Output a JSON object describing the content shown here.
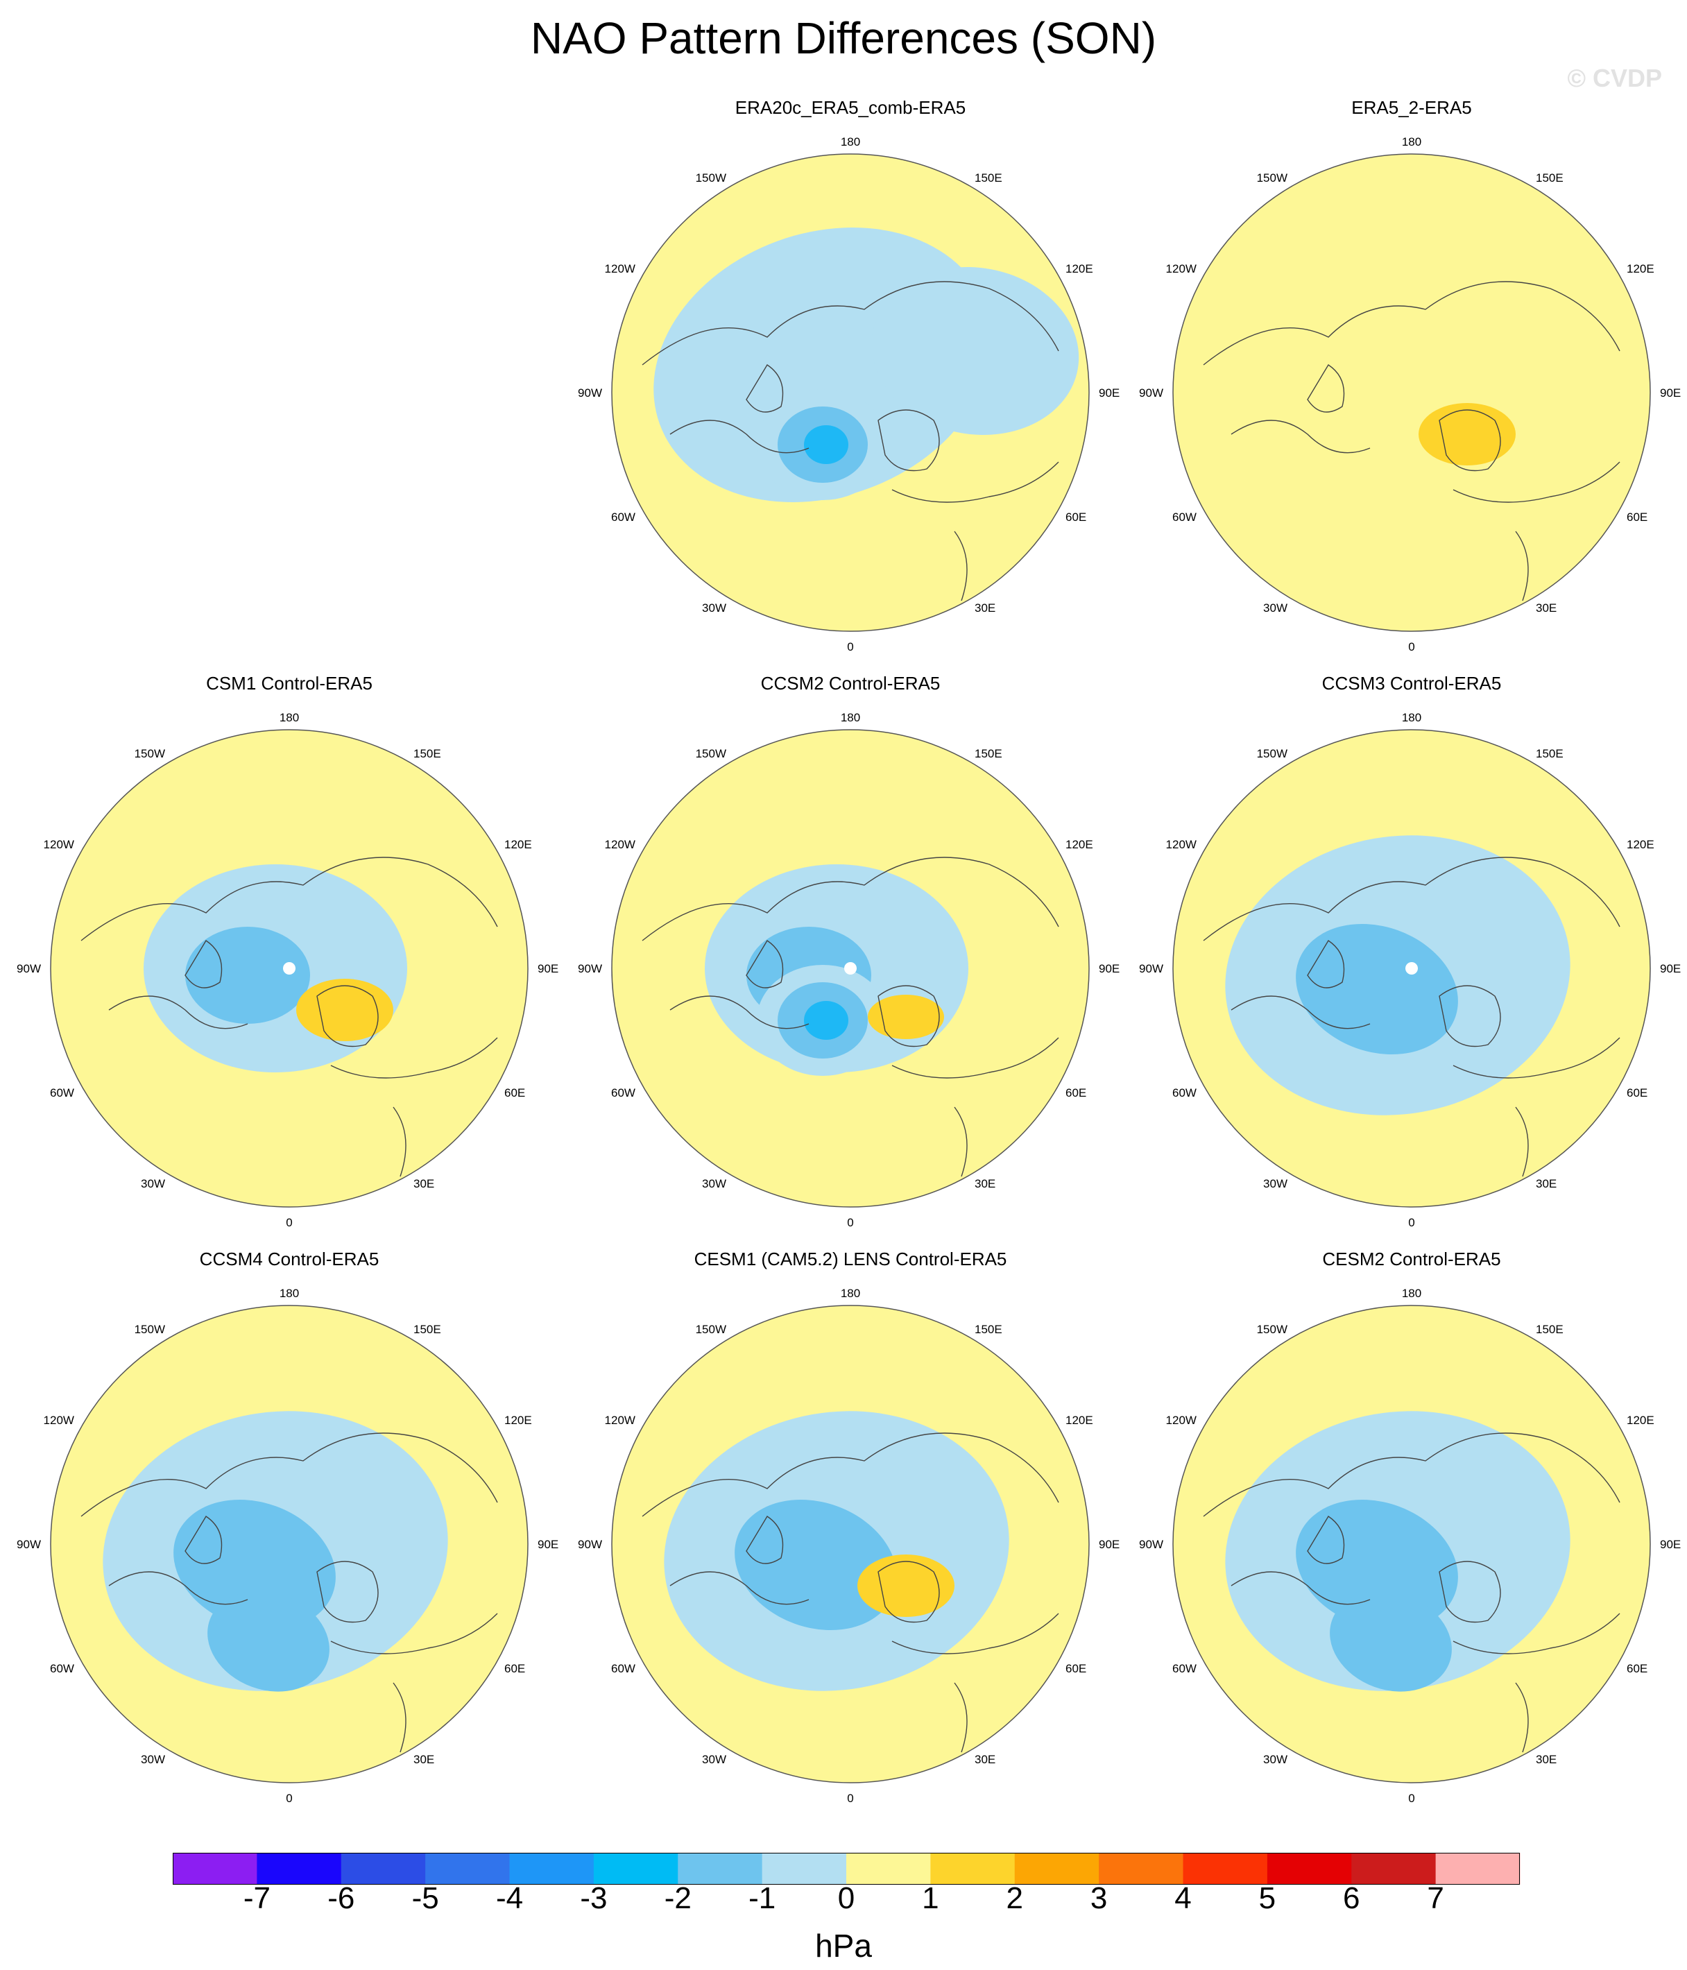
{
  "title": "NAO Pattern Differences (SON)",
  "watermark": "© CVDP",
  "colors": {
    "neg1": "#b3dff2",
    "neg2": "#6ec4ee",
    "neg3": "#1eb8f5",
    "pos1": "#fdf796",
    "pos2": "#fdd42c",
    "land_outline": "#444444"
  },
  "longitude_labels": {
    "top": "180",
    "top_left": "150W",
    "top_right": "150E",
    "upper_left": "120W",
    "upper_right": "120E",
    "left": "90W",
    "right": "90E",
    "lower_left": "60W",
    "lower_right": "60E",
    "bottom_left": "30W",
    "bottom_right": "30E",
    "bottom": "0"
  },
  "panels": [
    {
      "title": "ERA20c_ERA5_comb-ERA5",
      "features": [
        "nh-low-wide",
        "atlantic-low-strong"
      ]
    },
    {
      "title": "ERA5_2-ERA5",
      "features": [
        "europe-high"
      ]
    },
    {
      "title": "CSM1 Control-ERA5",
      "features": [
        "polar-low",
        "europe-high",
        "pole-missing"
      ]
    },
    {
      "title": "CCSM2 Control-ERA5",
      "features": [
        "polar-low",
        "atlantic-low-strong",
        "europe-high-weak",
        "pole-missing"
      ]
    },
    {
      "title": "CCSM3 Control-ERA5",
      "features": [
        "polar-low-wide",
        "pole-missing"
      ]
    },
    {
      "title": "CCSM4 Control-ERA5",
      "features": [
        "polar-low-wide",
        "atlantic-low"
      ]
    },
    {
      "title": "CESM1 (CAM5.2) LENS Control-ERA5",
      "features": [
        "polar-low-wide",
        "europe-high"
      ]
    },
    {
      "title": "CESM2 Control-ERA5",
      "features": [
        "polar-low-wide",
        "atlantic-low"
      ]
    }
  ],
  "colorbar": {
    "units": "hPa",
    "levels": [
      "-7",
      "-6",
      "-5",
      "-4",
      "-3",
      "-2",
      "-1",
      "0",
      "1",
      "2",
      "3",
      "4",
      "5",
      "6",
      "7"
    ],
    "colors": [
      "#8c1ef2",
      "#1a06fc",
      "#2c4de6",
      "#3174ec",
      "#1e96f7",
      "#00bbf4",
      "#6ec4ee",
      "#b3dff2",
      "#fdf796",
      "#fdd42c",
      "#fca604",
      "#fb740c",
      "#fb3204",
      "#e40104",
      "#cc1c1c",
      "#fdb0b0"
    ]
  }
}
